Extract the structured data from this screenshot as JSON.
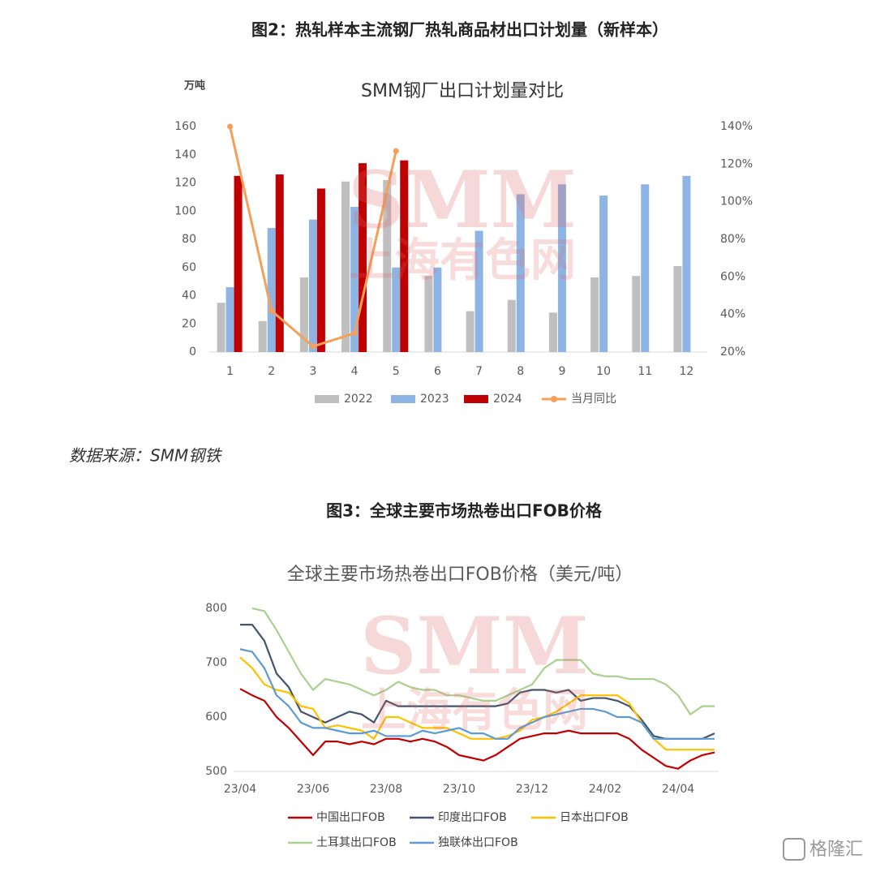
{
  "figure_titles": [
    "图2：热轧样本主流钢厂热轧商品材出口计划量（新样本）",
    "图3：全球主要市场热卷出口FOB价格"
  ],
  "source": "数据来源：SMM钢铁",
  "watermark": {
    "logo": "SMM",
    "name": "上海有色网"
  },
  "corner_logo": "格隆汇",
  "chart_data": [
    {
      "type": "bar",
      "title": "SMM钢厂出口计划量对比",
      "y_label": "万吨",
      "categories": [
        "1",
        "2",
        "3",
        "4",
        "5",
        "6",
        "7",
        "8",
        "9",
        "10",
        "11",
        "12"
      ],
      "series": [
        {
          "name": "2022",
          "color": "#bfbfbf",
          "values": [
            35,
            22,
            53,
            121,
            122,
            54,
            29,
            37,
            28,
            53,
            54,
            61
          ]
        },
        {
          "name": "2023",
          "color": "#8eb4e3",
          "values": [
            46,
            88,
            94,
            103,
            60,
            60,
            86,
            112,
            119,
            111,
            119,
            125
          ]
        },
        {
          "name": "2024",
          "color": "#c00000",
          "values": [
            125,
            126,
            116,
            134,
            136,
            null,
            null,
            null,
            null,
            null,
            null,
            null
          ]
        },
        {
          "name": "当月同比",
          "type": "line",
          "axis": "y2",
          "color": "#f4a05a",
          "values": [
            140,
            42,
            23,
            30,
            127,
            null,
            null,
            null,
            null,
            null,
            null,
            null
          ]
        }
      ],
      "ylim": [
        0,
        160
      ],
      "yticks": [
        0,
        20,
        40,
        60,
        80,
        100,
        120,
        140,
        160
      ],
      "y2lim": [
        20,
        140
      ],
      "y2ticks": [
        {
          "value": 20,
          "label": "20%"
        },
        {
          "value": 40,
          "label": "40%"
        },
        {
          "value": 60,
          "label": "60%"
        },
        {
          "value": 80,
          "label": "80%"
        },
        {
          "value": 100,
          "label": "100%"
        },
        {
          "value": 120,
          "label": "120%"
        },
        {
          "value": 140,
          "label": "140%"
        }
      ],
      "legend": "bottom"
    },
    {
      "type": "line",
      "title": "全球主要市场热卷出口FOB价格（美元/吨）",
      "categories": [
        "23/04",
        null,
        null,
        null,
        null,
        null,
        "23/06",
        null,
        null,
        null,
        null,
        null,
        "23/08",
        null,
        null,
        null,
        null,
        null,
        "23/10",
        null,
        null,
        null,
        null,
        null,
        "23/12",
        null,
        null,
        null,
        null,
        null,
        "24/02",
        null,
        null,
        null,
        null,
        null,
        "24/04",
        null,
        null,
        null
      ],
      "series": [
        {
          "name": "中国出口FOB",
          "color": "#c00000",
          "values": [
            652,
            640,
            630,
            600,
            580,
            555,
            530,
            555,
            555,
            550,
            555,
            550,
            560,
            560,
            555,
            560,
            555,
            545,
            530,
            525,
            520,
            530,
            545,
            560,
            565,
            570,
            570,
            575,
            570,
            570,
            570,
            570,
            560,
            540,
            525,
            510,
            505,
            520,
            530,
            535
          ]
        },
        {
          "name": "印度出口FOB",
          "color": "#44546a",
          "values": [
            770,
            770,
            740,
            680,
            655,
            610,
            600,
            590,
            600,
            610,
            605,
            590,
            630,
            620,
            620,
            620,
            620,
            620,
            620,
            620,
            620,
            620,
            625,
            645,
            650,
            650,
            645,
            650,
            630,
            635,
            635,
            630,
            620,
            595,
            565,
            560,
            560,
            560,
            560,
            570
          ]
        },
        {
          "name": "日本出口FOB",
          "color": "#ffc000",
          "values": [
            710,
            690,
            660,
            650,
            645,
            620,
            615,
            580,
            585,
            580,
            575,
            560,
            600,
            600,
            590,
            580,
            580,
            580,
            570,
            560,
            560,
            560,
            565,
            575,
            595,
            600,
            610,
            625,
            640,
            640,
            640,
            640,
            625,
            590,
            560,
            540,
            540,
            540,
            540,
            540
          ]
        },
        {
          "name": "土耳其出口FOB",
          "color": "#a9d18e",
          "values": [
            null,
            800,
            795,
            760,
            720,
            680,
            650,
            670,
            665,
            660,
            650,
            640,
            650,
            665,
            655,
            650,
            650,
            640,
            640,
            635,
            630,
            630,
            640,
            650,
            660,
            690,
            705,
            705,
            705,
            680,
            675,
            675,
            670,
            670,
            670,
            660,
            640,
            605,
            620,
            620
          ]
        },
        {
          "name": "独联体出口FOB",
          "color": "#5b9bd5",
          "values": [
            725,
            720,
            690,
            640,
            620,
            590,
            580,
            580,
            575,
            570,
            570,
            575,
            565,
            565,
            565,
            575,
            570,
            575,
            580,
            570,
            570,
            560,
            560,
            580,
            590,
            600,
            605,
            610,
            615,
            615,
            610,
            600,
            600,
            590,
            560,
            560,
            560,
            560,
            560,
            560
          ]
        }
      ],
      "ylim": [
        500,
        800
      ],
      "yticks": [
        500,
        600,
        700,
        800
      ],
      "legend": "bottom"
    }
  ]
}
